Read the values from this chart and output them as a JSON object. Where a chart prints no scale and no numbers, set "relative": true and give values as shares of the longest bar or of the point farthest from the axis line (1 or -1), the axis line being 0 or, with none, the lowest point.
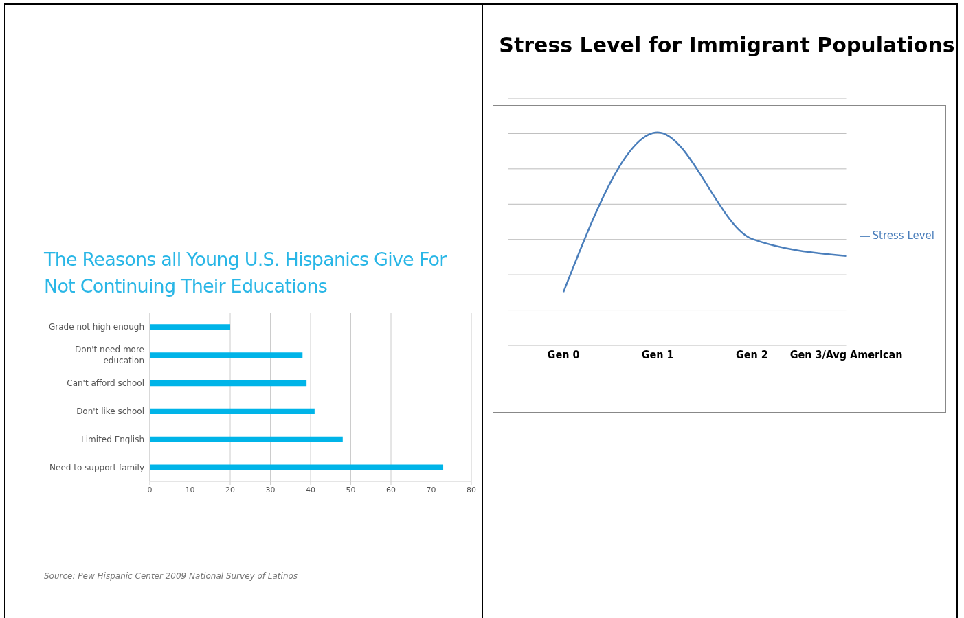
{
  "chart_data": [
    {
      "type": "bar",
      "title": "The Reasons all Young U.S. Hispanics Give For Not Continuing Their Educations",
      "orientation": "horizontal",
      "categories": [
        "Grade not high enough",
        "Don't need more education",
        "Can't afford school",
        "Don't like school",
        "Limited English",
        "Need to support family"
      ],
      "values": [
        20,
        38,
        39,
        41,
        48,
        73
      ],
      "color": "#00b4e8",
      "xlim": [
        0,
        80
      ],
      "xticks": [
        0,
        10,
        20,
        30,
        40,
        50,
        60,
        70,
        80
      ],
      "grid": "x",
      "annotations": [
        "Source: Pew Hispanic Center 2009 National Survey of Latinos"
      ]
    },
    {
      "type": "line",
      "title": "Stress Level for Immigrant Populations",
      "categories": [
        "Gen 0",
        "Gen 1",
        "Gen 2",
        "Gen 3/Avg American"
      ],
      "relative": true,
      "series": [
        {
          "name": "Stress Level",
          "color": "#4a7ebb",
          "values": [
            0.25,
            1,
            0.5,
            0.42
          ]
        }
      ],
      "grid": "y",
      "legend": "right",
      "marker": "none",
      "line_style": "solid"
    }
  ]
}
